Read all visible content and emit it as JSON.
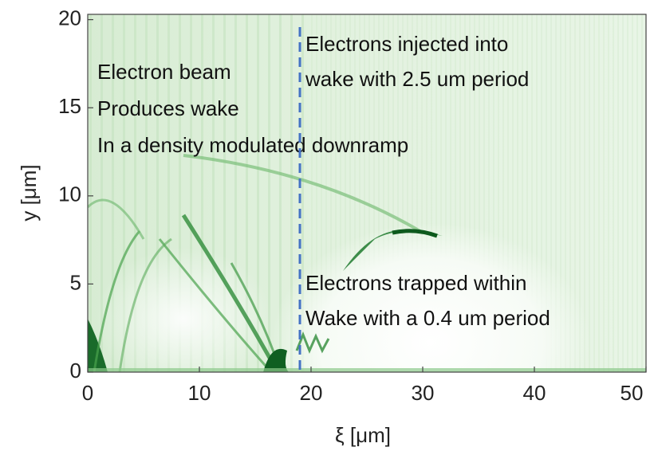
{
  "chart_data": {
    "type": "heatmap",
    "xlabel": "ξ [μm]",
    "ylabel": "y [μm]",
    "xlim": [
      0,
      50
    ],
    "ylim": [
      0,
      20.3
    ],
    "xticks": [
      0,
      10,
      20,
      30,
      40,
      50
    ],
    "yticks": [
      0,
      5,
      10,
      15,
      20
    ],
    "vline": 19,
    "vline_color": "#4472c4",
    "annotations": [
      "Electron beam",
      "Produces wake",
      "In a density modulated downramp",
      "Electrons injected into",
      "wake with 2.5 um period",
      "Electrons trapped within",
      "Wake with a 0.4 um period"
    ]
  }
}
